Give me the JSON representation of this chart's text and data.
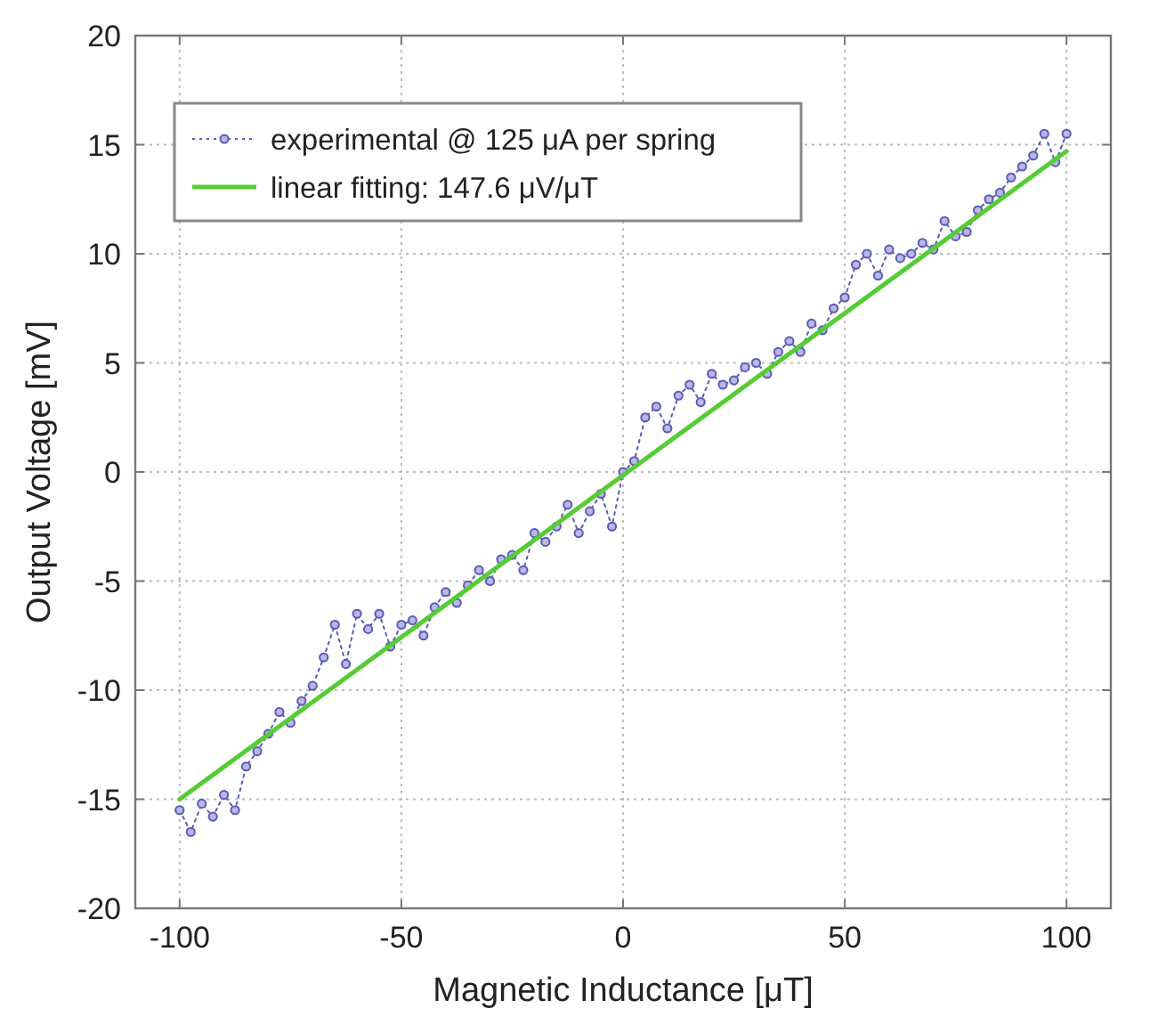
{
  "chart_data": {
    "type": "line",
    "xlabel": "Magnetic Inductance [μT]",
    "ylabel": "Output Voltage [mV]",
    "xlim": [
      -110,
      110
    ],
    "xticks": [
      -100,
      -50,
      0,
      50,
      100
    ],
    "ylim": [
      -20,
      20
    ],
    "yticks": [
      -20,
      -15,
      -10,
      -5,
      0,
      5,
      10,
      15,
      20
    ],
    "grid": true,
    "legend": "top left",
    "series": [
      {
        "name": "experimental @ 125 μA per spring",
        "color": "#5a5ab8",
        "marker": "circle",
        "line_style": "dotted",
        "x": [
          -100,
          -97.5,
          -95,
          -92.5,
          -90,
          -87.5,
          -85,
          -82.5,
          -80,
          -77.5,
          -75,
          -72.5,
          -70,
          -67.5,
          -65,
          -62.5,
          -60,
          -57.5,
          -55,
          -52.5,
          -50,
          -47.5,
          -45,
          -42.5,
          -40,
          -37.5,
          -35,
          -32.5,
          -30,
          -27.5,
          -25,
          -22.5,
          -20,
          -17.5,
          -15,
          -12.5,
          -10,
          -7.5,
          -5,
          -2.5,
          0,
          2.5,
          5,
          7.5,
          10,
          12.5,
          15,
          17.5,
          20,
          22.5,
          25,
          27.5,
          30,
          32.5,
          35,
          37.5,
          40,
          42.5,
          45,
          47.5,
          50,
          52.5,
          55,
          57.5,
          60,
          62.5,
          65,
          67.5,
          70,
          72.5,
          75,
          77.5,
          80,
          82.5,
          85,
          87.5,
          90,
          92.5,
          95,
          97.5,
          100
        ],
        "values": [
          -15.5,
          -16.5,
          -15.2,
          -15.8,
          -14.8,
          -15.5,
          -13.5,
          -12.8,
          -12,
          -11,
          -11.5,
          -10.5,
          -9.8,
          -8.5,
          -7,
          -8.8,
          -6.5,
          -7.2,
          -6.5,
          -8,
          -7,
          -6.8,
          -7.5,
          -6.2,
          -5.5,
          -6,
          -5.2,
          -4.5,
          -5,
          -4,
          -3.8,
          -4.5,
          -2.8,
          -3.2,
          -2.5,
          -1.5,
          -2.8,
          -1.8,
          -1,
          -2.5,
          0,
          0.5,
          2.5,
          3,
          2,
          3.5,
          4,
          3.2,
          4.5,
          4,
          4.2,
          4.8,
          5,
          4.5,
          5.5,
          6,
          5.5,
          6.8,
          6.5,
          7.5,
          8,
          9.5,
          10,
          9,
          10.2,
          9.8,
          10,
          10.5,
          10.2,
          11.5,
          10.8,
          11,
          12,
          12.5,
          12.8,
          13.5,
          14,
          14.5,
          15.5,
          14.2,
          15.5
        ]
      },
      {
        "name": "linear fitting: 147.6 μV/μT",
        "color": "#55cc33",
        "marker": "none",
        "line_style": "solid",
        "x": [
          -100,
          100
        ],
        "values": [
          -15,
          14.7
        ]
      }
    ]
  }
}
